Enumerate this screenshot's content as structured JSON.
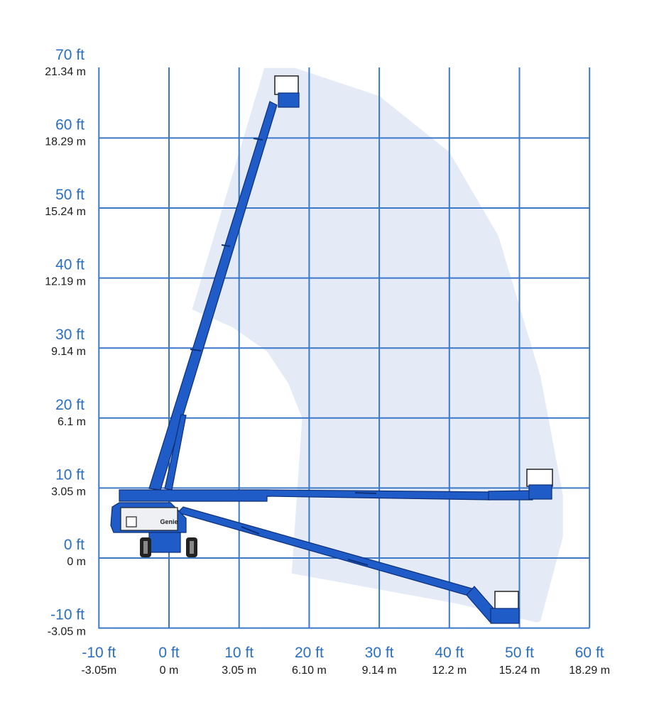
{
  "colors": {
    "grid": "#3c78c8",
    "envelope": "#dfe8f6",
    "boom": "#1f5cc8",
    "boom_outline": "#0d2f78",
    "label_ft": "#2a6fc1",
    "label_m": "#1a1a1a"
  },
  "chart_data": {
    "type": "diagram",
    "x_axis": {
      "ticks": [
        {
          "value": -10,
          "ft": "-10 ft",
          "m": "-3.05m"
        },
        {
          "value": 0,
          "ft": "0 ft",
          "m": "0 m"
        },
        {
          "value": 10,
          "ft": "10 ft",
          "m": "3.05 m"
        },
        {
          "value": 20,
          "ft": "20 ft",
          "m": "6.10 m"
        },
        {
          "value": 30,
          "ft": "30 ft",
          "m": "9.14 m"
        },
        {
          "value": 40,
          "ft": "40 ft",
          "m": "12.2 m"
        },
        {
          "value": 50,
          "ft": "50 ft",
          "m": "15.24 m"
        },
        {
          "value": 60,
          "ft": "60 ft",
          "m": "18.29 m"
        }
      ],
      "range": [
        -10,
        60
      ]
    },
    "y_axis": {
      "ticks": [
        {
          "value": -10,
          "ft": "-10 ft",
          "m": "-3.05 m"
        },
        {
          "value": 0,
          "ft": "0 ft",
          "m": "0 m"
        },
        {
          "value": 10,
          "ft": "10 ft",
          "m": "3.05 m"
        },
        {
          "value": 20,
          "ft": "20 ft",
          "m": "6.1 m"
        },
        {
          "value": 30,
          "ft": "30 ft",
          "m": "9.14 m"
        },
        {
          "value": 40,
          "ft": "40 ft",
          "m": "12.19 m"
        },
        {
          "value": 50,
          "ft": "50 ft",
          "m": "15.24 m"
        },
        {
          "value": 60,
          "ft": "60 ft",
          "m": "18.29 m"
        },
        {
          "value": 70,
          "ft": "70 ft",
          "m": "21.34 m"
        }
      ],
      "range": [
        -10,
        70
      ]
    },
    "grid": true,
    "envelope": [
      [
        3.3,
        35.5
      ],
      [
        13.6,
        70
      ],
      [
        18,
        70
      ],
      [
        30,
        66
      ],
      [
        40,
        58
      ],
      [
        47,
        46
      ],
      [
        53,
        26
      ],
      [
        56.2,
        9
      ],
      [
        56.2,
        3
      ],
      [
        53,
        -9
      ],
      [
        52.5,
        -9.2
      ],
      [
        41,
        -6.5
      ],
      [
        17.5,
        -2.2
      ],
      [
        19,
        20
      ],
      [
        17,
        25
      ],
      [
        14,
        29.5
      ],
      [
        9,
        33
      ],
      [
        3.3,
        35.5
      ]
    ],
    "boom_positions": [
      {
        "name": "vertical",
        "tip": [
          16.5,
          64.5
        ]
      },
      {
        "name": "horizontal",
        "tip": [
          53.5,
          9.5
        ]
      },
      {
        "name": "below-grade",
        "tip": [
          47,
          -8.5
        ]
      }
    ]
  },
  "machine": {
    "brand": "Genie"
  }
}
